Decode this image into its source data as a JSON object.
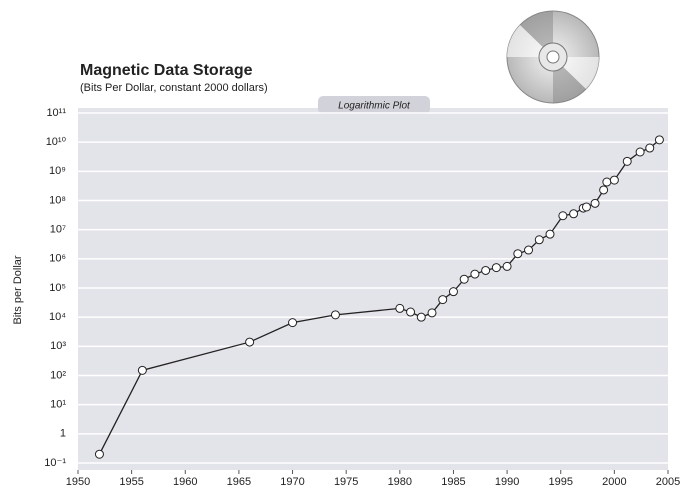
{
  "chart_data": {
    "type": "line",
    "title": "Magnetic Data Storage",
    "subtitle": "(Bits Per Dollar, constant 2000 dollars)",
    "annotation": "Logarithmic Plot",
    "y_label": "Bits per Dollar",
    "log_y": true,
    "grid": true,
    "xlim": [
      1950,
      2005
    ],
    "xticks": [
      1950,
      1955,
      1960,
      1965,
      1970,
      1975,
      1980,
      1985,
      1990,
      1995,
      2000,
      2005
    ],
    "ylim": [
      0.1,
      100000000000
    ],
    "yticks": [
      {
        "value": 0.1,
        "label": "10⁻¹"
      },
      1,
      {
        "value": 10,
        "label": "10¹"
      },
      {
        "value": 100,
        "label": "10²"
      },
      {
        "value": 1000,
        "label": "10³"
      },
      {
        "value": 10000,
        "label": "10⁴"
      },
      {
        "value": 100000,
        "label": "10⁵"
      },
      {
        "value": 1000000,
        "label": "10⁶"
      },
      {
        "value": 10000000,
        "label": "10⁷"
      },
      {
        "value": 100000000,
        "label": "10⁸"
      },
      {
        "value": 1000000000,
        "label": "10⁹"
      },
      {
        "value": 10000000000,
        "label": "10¹⁰"
      },
      {
        "value": 100000000000,
        "label": "10¹¹"
      }
    ],
    "x": [
      1952,
      1956,
      1966,
      1970,
      1974,
      1980,
      1981,
      1982,
      1983,
      1984,
      1985,
      1986,
      1987,
      1988,
      1989,
      1990,
      1991,
      1992,
      1993,
      1994,
      1995.2,
      1996.2,
      1997.1,
      1997.4,
      1998.2,
      1999,
      1999.3,
      2000,
      2001.2,
      2002.4,
      2003.3,
      2004.2
    ],
    "series": [
      {
        "color": "#222222",
        "values": [
          0.2,
          150,
          1400,
          6500,
          12000,
          20000,
          15000,
          10000,
          14000,
          40000,
          75000,
          200000,
          300000,
          400000,
          500000,
          550000,
          1500000,
          2000000,
          4500000,
          7000000,
          30000000,
          35000000,
          55000000,
          60000000,
          80000000,
          230000000,
          430000000,
          500000000,
          2200000000,
          4600000000,
          6300000000,
          12000000000
        ]
      }
    ]
  }
}
